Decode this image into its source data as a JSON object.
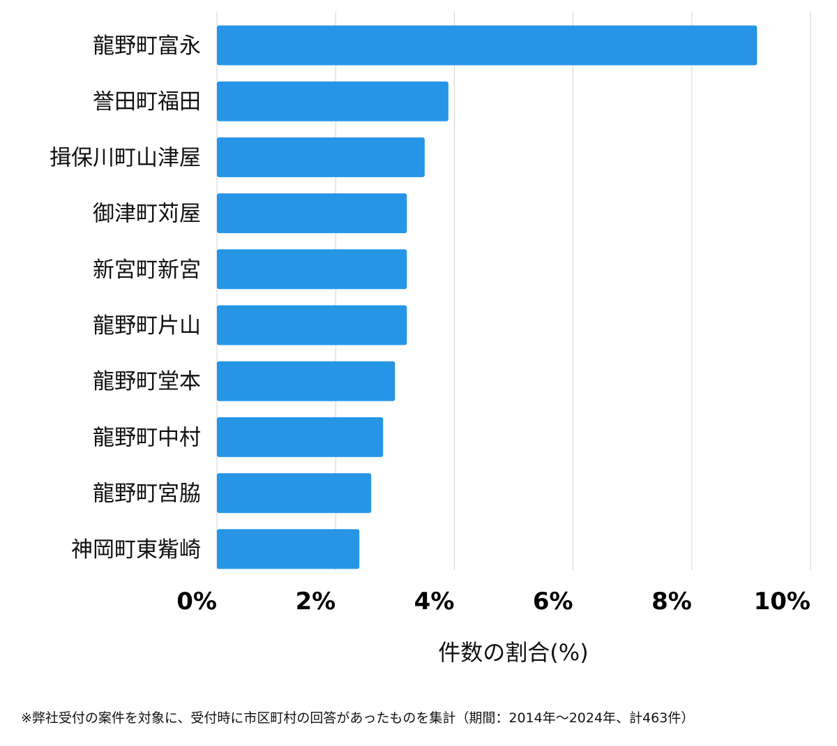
{
  "chart_data": {
    "type": "bar",
    "orientation": "horizontal",
    "categories": [
      "龍野町富永",
      "誉田町福田",
      "揖保川町山津屋",
      "御津町苅屋",
      "新宮町新宮",
      "龍野町片山",
      "龍野町堂本",
      "龍野町中村",
      "龍野町宮脇",
      "神岡町東觜崎"
    ],
    "values": [
      9.1,
      3.9,
      3.5,
      3.2,
      3.2,
      3.2,
      3.0,
      2.8,
      2.6,
      2.4
    ],
    "xlabel": "件数の割合(%)",
    "xlim": [
      0,
      10
    ],
    "ticks": [
      0,
      2,
      4,
      6,
      8,
      10
    ],
    "tick_labels": [
      "0%",
      "2%",
      "4%",
      "6%",
      "8%",
      "10%"
    ],
    "grid": true,
    "bar_color": "#2795e6",
    "grid_color": "#d9d9d9"
  },
  "footnote": "※弊社受付の案件を対象に、受付時に市区町村の回答があったものを集計（期間：2014年〜2024年、計463件）"
}
